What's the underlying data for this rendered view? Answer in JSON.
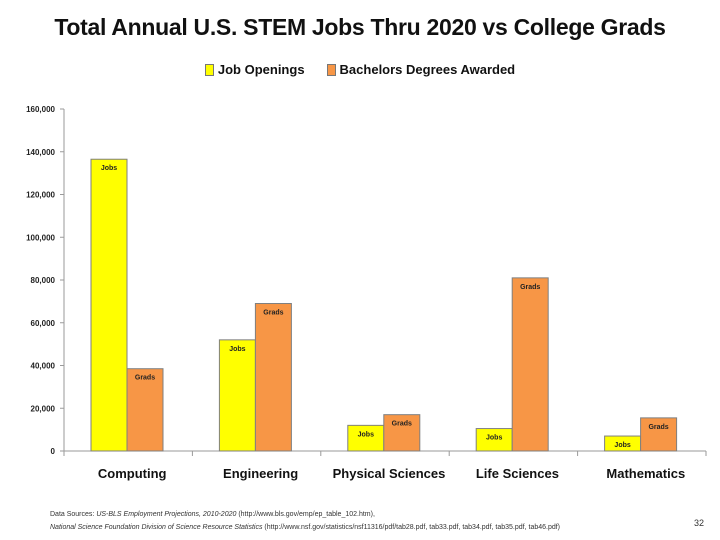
{
  "chart_data": {
    "type": "bar",
    "title": "Total Annual U.S. STEM Jobs Thru 2020 vs College Grads",
    "categories": [
      "Computing",
      "Engineering",
      "Physical Sciences",
      "Life Sciences",
      "Mathematics"
    ],
    "series": [
      {
        "name": "Job Openings",
        "bar_label": "Jobs",
        "color": "#ffff00",
        "values": [
          136500,
          52000,
          12000,
          10500,
          7000
        ]
      },
      {
        "name": "Bachelors Degrees Awarded",
        "bar_label": "Grads",
        "color": "#f79646",
        "values": [
          38500,
          69000,
          17000,
          81000,
          15500
        ]
      }
    ],
    "yticks": [
      "0",
      "20,000",
      "40,000",
      "60,000",
      "80,000",
      "100,000",
      "120,000",
      "140,000",
      "160,000"
    ],
    "ylim": [
      0,
      160000
    ],
    "xlabel": "",
    "ylabel": "",
    "legend_position": "top"
  },
  "sources": {
    "line1_prefix": "Data Sources: ",
    "line1_em": "US-BLS Employment Projections, 2010-2020",
    "line1_rest": " (http://www.bls.gov/emp/ep_table_102.htm),",
    "line2_em": "National Science Foundation Division of Science Resource Statistics",
    "line2_rest": " (http://www.nsf.gov/statistics/nsf11316/pdf/tab28.pdf, tab33.pdf, tab34.pdf, tab35.pdf, tab46.pdf)"
  },
  "slide_number": "32"
}
